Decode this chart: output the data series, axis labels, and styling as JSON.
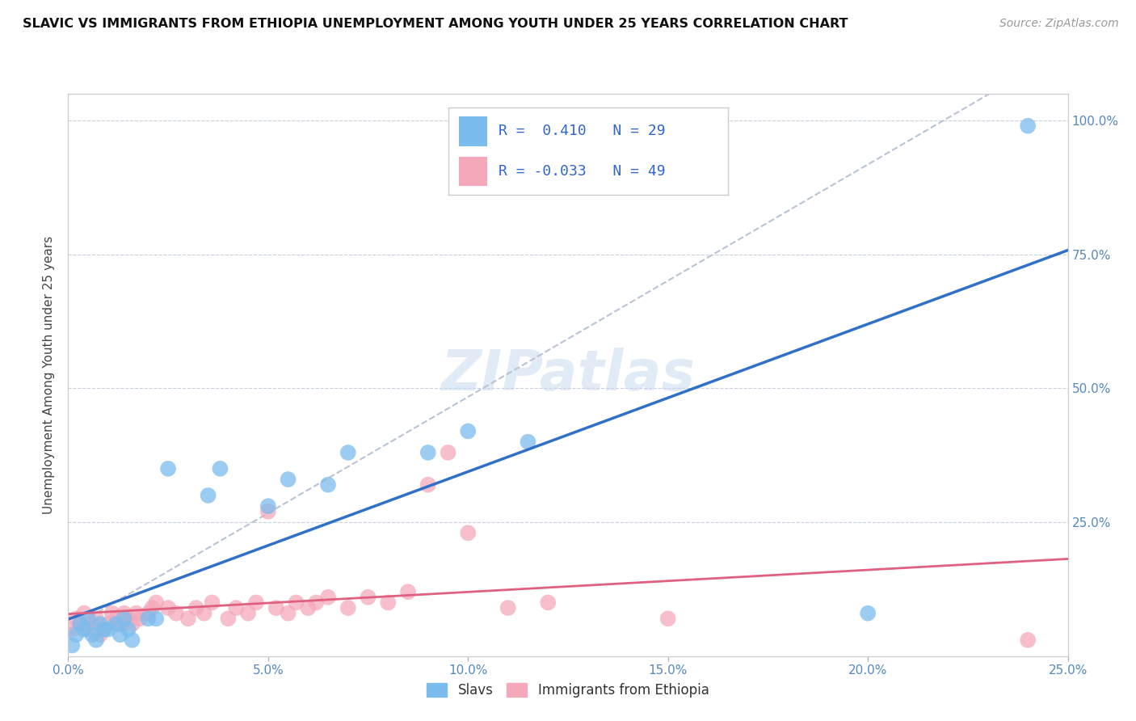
{
  "title": "SLAVIC VS IMMIGRANTS FROM ETHIOPIA UNEMPLOYMENT AMONG YOUTH UNDER 25 YEARS CORRELATION CHART",
  "source": "Source: ZipAtlas.com",
  "ylabel": "Unemployment Among Youth under 25 years",
  "xlabel_slavs": "Slavs",
  "xlabel_ethiopia": "Immigrants from Ethiopia",
  "xmin": 0.0,
  "xmax": 0.25,
  "ymin": 0.0,
  "ymax": 1.05,
  "xticks": [
    0.0,
    0.05,
    0.1,
    0.15,
    0.2,
    0.25
  ],
  "yticks": [
    0.25,
    0.5,
    0.75,
    1.0
  ],
  "ytick_labels": [
    "25.0%",
    "50.0%",
    "75.0%",
    "100.0%"
  ],
  "xtick_labels": [
    "0.0%",
    "5.0%",
    "10.0%",
    "15.0%",
    "20.0%",
    "25.0%"
  ],
  "R_slavs": 0.41,
  "N_slavs": 29,
  "R_ethiopia": -0.033,
  "N_ethiopia": 49,
  "color_slavs": "#7bbcee",
  "color_ethiopia": "#f5a8ba",
  "color_slavs_line": "#3070c8",
  "color_ethiopia_line": "#e06080",
  "color_diagonal": "#b8c4d4",
  "background_color": "#ffffff",
  "watermark": "ZIPatlas",
  "slavs_x": [
    0.001,
    0.002,
    0.003,
    0.004,
    0.005,
    0.006,
    0.007,
    0.008,
    0.009,
    0.01,
    0.012,
    0.013,
    0.014,
    0.015,
    0.016,
    0.02,
    0.022,
    0.025,
    0.035,
    0.038,
    0.05,
    0.055,
    0.065,
    0.07,
    0.09,
    0.1,
    0.115,
    0.2,
    0.24
  ],
  "slavs_y": [
    0.02,
    0.04,
    0.06,
    0.05,
    0.07,
    0.04,
    0.03,
    0.06,
    0.05,
    0.05,
    0.06,
    0.04,
    0.07,
    0.05,
    0.03,
    0.07,
    0.07,
    0.35,
    0.3,
    0.35,
    0.28,
    0.33,
    0.32,
    0.38,
    0.38,
    0.42,
    0.4,
    0.08,
    0.99
  ],
  "ethiopia_x": [
    0.001,
    0.002,
    0.003,
    0.004,
    0.005,
    0.006,
    0.007,
    0.008,
    0.009,
    0.01,
    0.011,
    0.012,
    0.013,
    0.014,
    0.015,
    0.016,
    0.017,
    0.018,
    0.02,
    0.021,
    0.022,
    0.025,
    0.027,
    0.03,
    0.032,
    0.034,
    0.036,
    0.04,
    0.042,
    0.045,
    0.047,
    0.05,
    0.052,
    0.055,
    0.057,
    0.06,
    0.062,
    0.065,
    0.07,
    0.075,
    0.08,
    0.085,
    0.09,
    0.095,
    0.1,
    0.11,
    0.12,
    0.15,
    0.24
  ],
  "ethiopia_y": [
    0.05,
    0.07,
    0.06,
    0.08,
    0.05,
    0.06,
    0.07,
    0.04,
    0.05,
    0.06,
    0.08,
    0.07,
    0.06,
    0.08,
    0.07,
    0.06,
    0.08,
    0.07,
    0.08,
    0.09,
    0.1,
    0.09,
    0.08,
    0.07,
    0.09,
    0.08,
    0.1,
    0.07,
    0.09,
    0.08,
    0.1,
    0.27,
    0.09,
    0.08,
    0.1,
    0.09,
    0.1,
    0.11,
    0.09,
    0.11,
    0.1,
    0.12,
    0.32,
    0.38,
    0.23,
    0.09,
    0.1,
    0.07,
    0.03
  ]
}
